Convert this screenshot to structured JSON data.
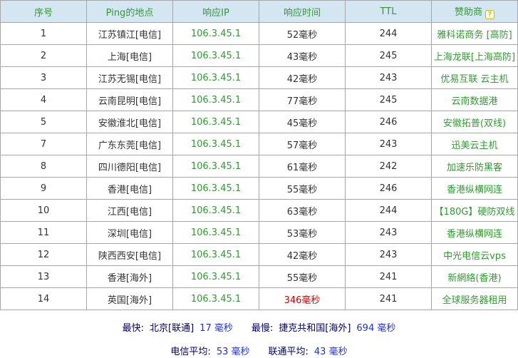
{
  "colors": {
    "header_bg": "#d4e6f1",
    "header_text": "#339933",
    "ip_green": "#339933",
    "sponsor_green": "#339933",
    "time_red": "#cc0000",
    "body_text": "#333333",
    "border": "#a6a6a6",
    "footer_label": "#000066",
    "footer_value": "#2233cc"
  },
  "table": {
    "headers": [
      "序号",
      "Ping的地点",
      "响应IP",
      "响应时间",
      "TTL",
      "赞助商"
    ],
    "help_icon": "?",
    "rows": [
      {
        "no": "1",
        "location": "江苏镇江[电信]",
        "ip": "106.3.45.1",
        "time": "52毫秒",
        "ttl": "244",
        "sponsor": "雅科诺商务 [高防]"
      },
      {
        "no": "2",
        "location": "上海[电信]",
        "ip": "106.3.45.1",
        "time": "43毫秒",
        "ttl": "245",
        "sponsor": "上海龙联[上海高防]"
      },
      {
        "no": "3",
        "location": "江苏无锡[电信]",
        "ip": "106.3.45.1",
        "time": "42毫秒",
        "ttl": "243",
        "sponsor": "优易互联 云主机"
      },
      {
        "no": "4",
        "location": "云南昆明[电信]",
        "ip": "106.3.45.1",
        "time": "77毫秒",
        "ttl": "245",
        "sponsor": "云南数据港"
      },
      {
        "no": "5",
        "location": "安徽淮北[电信]",
        "ip": "106.3.45.1",
        "time": "45毫秒",
        "ttl": "246",
        "sponsor": "安徽拓普(双线)"
      },
      {
        "no": "7",
        "location": "广东东莞[电信]",
        "ip": "106.3.45.1",
        "time": "57毫秒",
        "ttl": "243",
        "sponsor": "迅美云主机"
      },
      {
        "no": "8",
        "location": "四川德阳[电信]",
        "ip": "106.3.45.1",
        "time": "61毫秒",
        "ttl": "242",
        "sponsor": "加速乐防黑客"
      },
      {
        "no": "9",
        "location": "香港[电信]",
        "ip": "106.3.45.1",
        "time": "55毫秒",
        "ttl": "246",
        "sponsor": "香港纵横网连"
      },
      {
        "no": "10",
        "location": "江西[电信]",
        "ip": "106.3.45.1",
        "time": "63毫秒",
        "ttl": "244",
        "sponsor": "【180G】硬防双线"
      },
      {
        "no": "11",
        "location": "深圳[电信]",
        "ip": "106.3.45.1",
        "time": "53毫秒",
        "ttl": "243",
        "sponsor": "香港纵横网连"
      },
      {
        "no": "12",
        "location": "陕西西安[电信]",
        "ip": "106.3.45.1",
        "time": "42毫秒",
        "ttl": "243",
        "sponsor": "中光电信云vps"
      },
      {
        "no": "13",
        "location": "香港[海外]",
        "ip": "106.3.45.1",
        "time": "55毫秒",
        "ttl": "241",
        "sponsor": "新網絡(香港)"
      },
      {
        "no": "14",
        "location": "英国[海外]",
        "ip": "106.3.45.1",
        "time": "346毫秒",
        "ttl": "241",
        "sponsor": "全球服务器租用",
        "time_red": true
      }
    ]
  },
  "footer": {
    "fastest_label": "最快:",
    "fastest_location": "北京[联通]",
    "fastest_value": "17 毫秒",
    "slowest_label": "最慢:",
    "slowest_location": "捷克共和国[海外]",
    "slowest_value": "694 毫秒",
    "telecom_avg_label": "电信平均:",
    "telecom_avg_value": "53 毫秒",
    "unicom_avg_label": "联通平均:",
    "unicom_avg_value": "43 毫秒"
  }
}
